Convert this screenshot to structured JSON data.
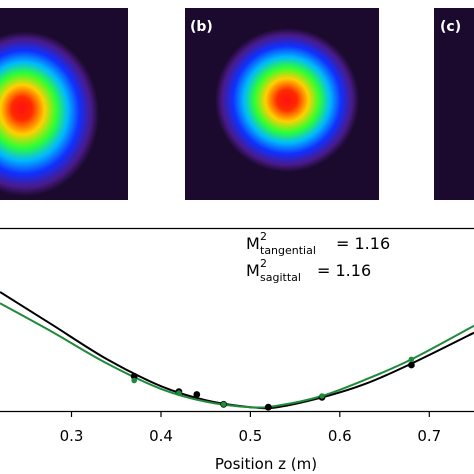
{
  "panels": [
    {
      "label": "(b)"
    },
    {
      "label": "(c)"
    }
  ],
  "annotations": [
    {
      "base": "M",
      "sup": "2",
      "sub": "tangential",
      "value": "= 1.16"
    },
    {
      "base": "M",
      "sup": "2",
      "sub": "sagittal",
      "value": "= 1.16"
    }
  ],
  "colors": {
    "tangential": "#000000",
    "sagittal": "#1e8a3a",
    "beam_background": "#1b0a2e"
  },
  "chart_data": {
    "type": "scatter",
    "xlabel": "Position z (m)",
    "ylabel": "",
    "xlim": [
      0.22,
      0.75
    ],
    "ylim": [
      0,
      1
    ],
    "x_ticks": [
      "0.3",
      "0.4",
      "0.5",
      "0.6",
      "0.7"
    ],
    "x_tick_values": [
      0.3,
      0.4,
      0.5,
      0.6,
      0.7
    ],
    "grid": false,
    "series": [
      {
        "key": "tangential",
        "points": [
          {
            "x": 0.37,
            "y": 0.286
          },
          {
            "x": 0.42,
            "y": 0.155
          },
          {
            "x": 0.44,
            "y": 0.131
          },
          {
            "x": 0.47,
            "y": 0.048
          },
          {
            "x": 0.52,
            "y": 0.024
          },
          {
            "x": 0.58,
            "y": 0.107
          },
          {
            "x": 0.68,
            "y": 0.381
          }
        ],
        "fit": [
          {
            "x": 0.22,
            "y": 1.0
          },
          {
            "x": 0.28,
            "y": 0.714
          },
          {
            "x": 0.34,
            "y": 0.429
          },
          {
            "x": 0.4,
            "y": 0.202
          },
          {
            "x": 0.45,
            "y": 0.083
          },
          {
            "x": 0.5,
            "y": 0.024
          },
          {
            "x": 0.53,
            "y": 0.024
          },
          {
            "x": 0.58,
            "y": 0.107
          },
          {
            "x": 0.63,
            "y": 0.226
          },
          {
            "x": 0.68,
            "y": 0.393
          },
          {
            "x": 0.75,
            "y": 0.655
          }
        ]
      },
      {
        "key": "sagittal",
        "points": [
          {
            "x": 0.37,
            "y": 0.25
          },
          {
            "x": 0.42,
            "y": 0.143
          },
          {
            "x": 0.47,
            "y": 0.048
          },
          {
            "x": 0.58,
            "y": 0.119
          },
          {
            "x": 0.68,
            "y": 0.429
          }
        ],
        "fit": [
          {
            "x": 0.22,
            "y": 0.905
          },
          {
            "x": 0.28,
            "y": 0.655
          },
          {
            "x": 0.34,
            "y": 0.393
          },
          {
            "x": 0.4,
            "y": 0.179
          },
          {
            "x": 0.45,
            "y": 0.071
          },
          {
            "x": 0.5,
            "y": 0.024
          },
          {
            "x": 0.53,
            "y": 0.036
          },
          {
            "x": 0.58,
            "y": 0.119
          },
          {
            "x": 0.63,
            "y": 0.262
          },
          {
            "x": 0.68,
            "y": 0.429
          },
          {
            "x": 0.75,
            "y": 0.714
          }
        ]
      }
    ]
  }
}
